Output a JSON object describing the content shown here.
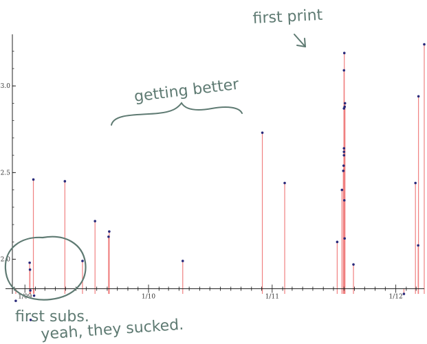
{
  "chart_data": {
    "type": "scatter",
    "style": "stem plot with red vertical drop lines and dark blue points",
    "grid": false,
    "x_axis": {
      "tick_labels": [
        "1/09",
        "1/10",
        "1/11",
        "1/12"
      ],
      "range": [
        "2008-11-25",
        "2012-03-25"
      ]
    },
    "y_axis": {
      "tick_labels": [
        "2.0",
        "2.5",
        "3.0"
      ],
      "ticks": [
        2.0,
        2.5,
        3.0
      ],
      "range": [
        1.82,
        3.27
      ],
      "baseline": 1.83
    },
    "points": [
      {
        "x": "2008-12-05",
        "y": 1.76
      },
      {
        "x": "2009-01-15",
        "y": 1.98
      },
      {
        "x": "2009-01-16",
        "y": 1.94
      },
      {
        "x": "2009-01-17",
        "y": 1.82
      },
      {
        "x": "2009-01-18",
        "y": 1.65
      },
      {
        "x": "2009-01-26",
        "y": 2.46
      },
      {
        "x": "2009-01-28",
        "y": 1.79
      },
      {
        "x": "2009-04-29",
        "y": 2.45
      },
      {
        "x": "2009-06-20",
        "y": 1.99
      },
      {
        "x": "2009-07-27",
        "y": 2.22
      },
      {
        "x": "2009-09-05",
        "y": 2.13
      },
      {
        "x": "2009-09-07",
        "y": 2.16
      },
      {
        "x": "2010-04-12",
        "y": 1.99
      },
      {
        "x": "2010-12-03",
        "y": 2.73
      },
      {
        "x": "2011-02-07",
        "y": 2.44
      },
      {
        "x": "2011-07-12",
        "y": 2.1
      },
      {
        "x": "2011-07-26",
        "y": 2.4
      },
      {
        "x": "2011-07-30",
        "y": 2.51
      },
      {
        "x": "2011-07-31",
        "y": 2.54
      },
      {
        "x": "2011-08-01",
        "y": 2.6
      },
      {
        "x": "2011-08-01",
        "y": 2.62
      },
      {
        "x": "2011-08-01",
        "y": 2.64
      },
      {
        "x": "2011-08-01",
        "y": 2.87
      },
      {
        "x": "2011-08-01",
        "y": 3.09
      },
      {
        "x": "2011-08-02",
        "y": 2.34
      },
      {
        "x": "2011-08-02",
        "y": 3.19
      },
      {
        "x": "2011-08-03",
        "y": 2.12
      },
      {
        "x": "2011-08-03",
        "y": 2.88
      },
      {
        "x": "2011-08-04",
        "y": 2.9
      },
      {
        "x": "2011-08-29",
        "y": 1.97
      },
      {
        "x": "2012-01-25",
        "y": 1.8
      },
      {
        "x": "2012-02-28",
        "y": 2.44
      },
      {
        "x": "2012-03-07",
        "y": 2.08
      },
      {
        "x": "2012-03-08",
        "y": 2.94
      },
      {
        "x": "2012-03-25",
        "y": 3.24
      }
    ],
    "colors": {
      "stem": "#f08080",
      "point": "#2a2a7a",
      "axis": "#222222"
    }
  },
  "annotations": {
    "first_print": "first print",
    "getting_better": "getting better",
    "first_subs": "first subs.",
    "yeah_sucked": "yeah, they sucked.",
    "ink_color": "#5e7a72"
  }
}
